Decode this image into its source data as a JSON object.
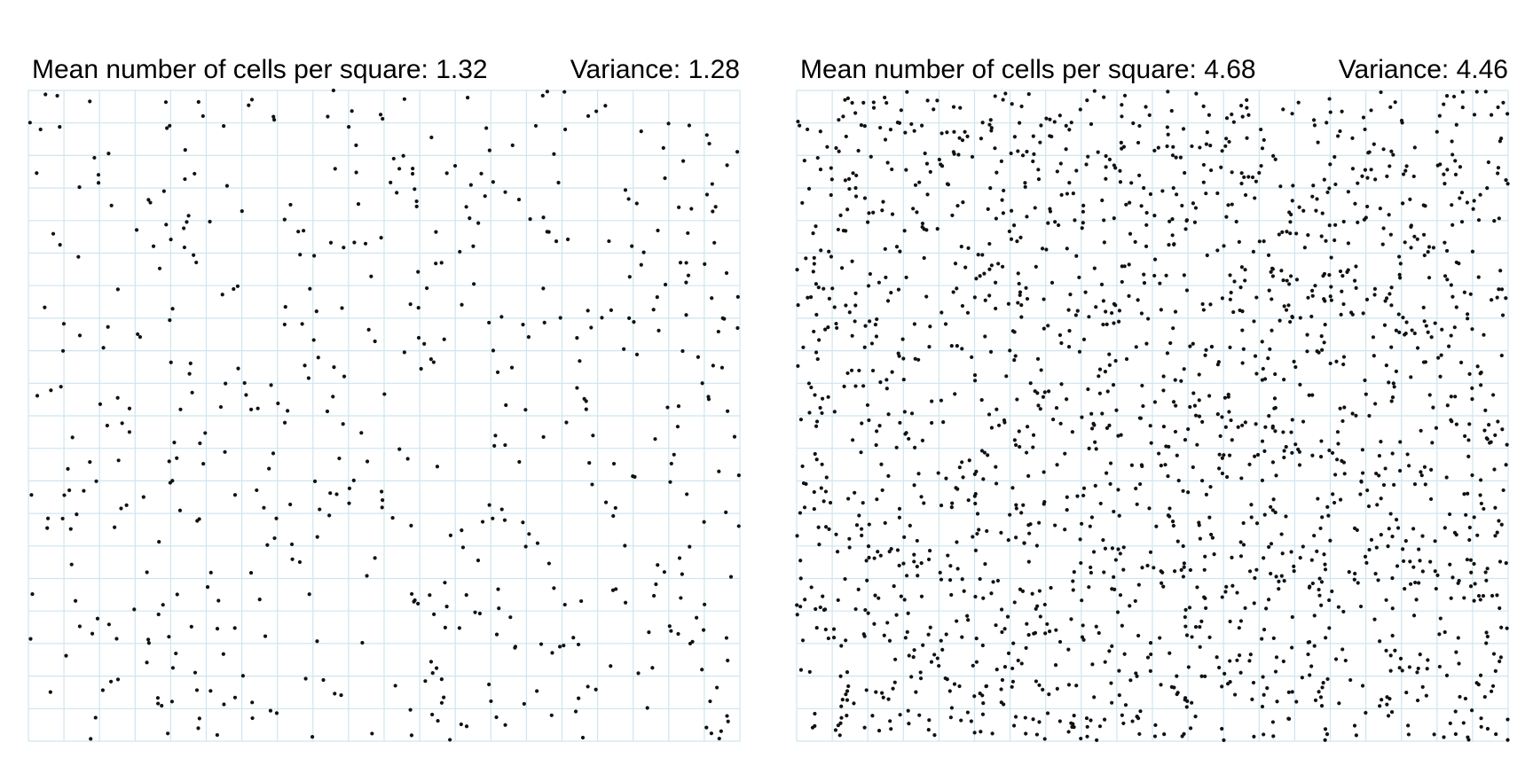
{
  "chart_data": [
    {
      "type": "scatter",
      "title_mean": "Mean number of cells per square: 1.32",
      "title_variance": "Variance: 1.28",
      "grid_color": "#cfe5ef",
      "point_color": "#111111",
      "xlim": [
        0,
        20
      ],
      "ylim": [
        0,
        20
      ],
      "grid": "20x20 squares",
      "seed": 13,
      "count": 528
    },
    {
      "type": "scatter",
      "title_mean": "Mean number of cells per square: 4.68",
      "title_variance": "Variance: 4.46",
      "grid_color": "#cfe5ef",
      "point_color": "#111111",
      "xlim": [
        0,
        20
      ],
      "ylim": [
        0,
        20
      ],
      "grid": "20x20 squares",
      "seed": 71,
      "count": 1872
    }
  ]
}
